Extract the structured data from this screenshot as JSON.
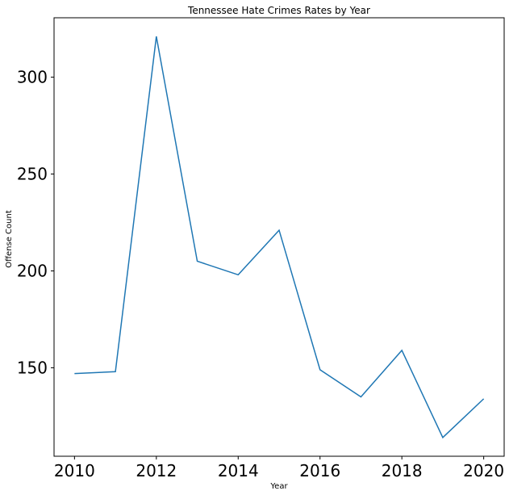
{
  "chart_data": {
    "type": "line",
    "title": "Tennessee Hate Crimes Rates by Year",
    "xlabel": "Year",
    "ylabel": "Offense Count",
    "x": [
      2010,
      2011,
      2012,
      2013,
      2014,
      2015,
      2016,
      2017,
      2018,
      2019,
      2020
    ],
    "series": [
      {
        "values": [
          147,
          148,
          321,
          205,
          198,
          221,
          149,
          135,
          159,
          114,
          134
        ]
      }
    ],
    "xlim": [
      2009.5,
      2020.5
    ],
    "ylim": [
      104.35,
      330.65
    ],
    "xticks": [
      "2010",
      "2012",
      "2014",
      "2016",
      "2018",
      "2020"
    ],
    "yticks": [
      "150",
      "200",
      "250",
      "300"
    ],
    "grid": false,
    "line_color": "#1f77b4"
  }
}
